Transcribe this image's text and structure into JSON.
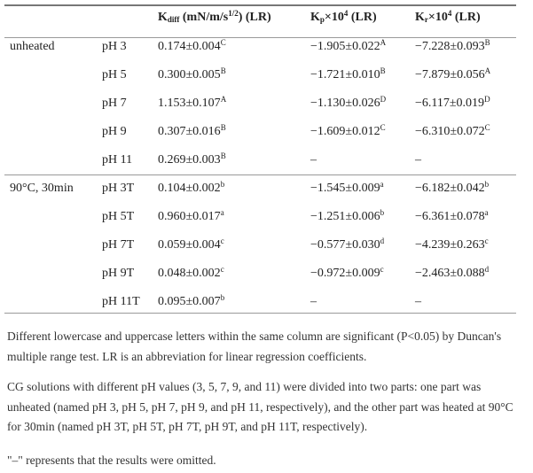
{
  "table": {
    "headers": [
      {
        "base": "K",
        "sub": "diff",
        "rest": " (mN/m/s",
        "sup": "1/2",
        "tail": ") (LR)"
      },
      {
        "base": "K",
        "sub": "p",
        "rest": "×10",
        "sup": "4",
        "tail": " (LR)"
      },
      {
        "base": "K",
        "sub": "r",
        "rest": "×10",
        "sup": "4",
        "tail": " (LR)"
      }
    ],
    "groups": [
      {
        "label": "unheated",
        "rows": [
          {
            "ph": "pH 3",
            "kdiff": [
              "0.174±0.004",
              "C"
            ],
            "kp": [
              "−1.905±0.022",
              "A"
            ],
            "kr": [
              "−7.228±0.093",
              "B"
            ]
          },
          {
            "ph": "pH 5",
            "kdiff": [
              "0.300±0.005",
              "B"
            ],
            "kp": [
              "−1.721±0.010",
              "B"
            ],
            "kr": [
              "−7.879±0.056",
              "A"
            ]
          },
          {
            "ph": "pH 7",
            "kdiff": [
              "1.153±0.107",
              "A"
            ],
            "kp": [
              "−1.130±0.026",
              "D"
            ],
            "kr": [
              "−6.117±0.019",
              "D"
            ]
          },
          {
            "ph": "pH 9",
            "kdiff": [
              "0.307±0.016",
              "B"
            ],
            "kp": [
              "−1.609±0.012",
              "C"
            ],
            "kr": [
              "−6.310±0.072",
              "C"
            ]
          },
          {
            "ph": "pH 11",
            "kdiff": [
              "0.269±0.003",
              "B"
            ],
            "kp": [
              "–",
              ""
            ],
            "kr": [
              "–",
              ""
            ]
          }
        ]
      },
      {
        "label": "90°C, 30min",
        "rows": [
          {
            "ph": "pH 3T",
            "kdiff": [
              "0.104±0.002",
              "b"
            ],
            "kp": [
              "−1.545±0.009",
              "a"
            ],
            "kr": [
              "−6.182±0.042",
              "b"
            ]
          },
          {
            "ph": "pH 5T",
            "kdiff": [
              "0.960±0.017",
              "a"
            ],
            "kp": [
              "−1.251±0.006",
              "b"
            ],
            "kr": [
              "−6.361±0.078",
              "a"
            ]
          },
          {
            "ph": "pH 7T",
            "kdiff": [
              "0.059±0.004",
              "c"
            ],
            "kp": [
              "−0.577±0.030",
              "d"
            ],
            "kr": [
              "−4.239±0.263",
              "c"
            ]
          },
          {
            "ph": "pH 9T",
            "kdiff": [
              "0.048±0.002",
              "c"
            ],
            "kp": [
              "−0.972±0.009",
              "c"
            ],
            "kr": [
              "−2.463±0.088",
              "d"
            ]
          },
          {
            "ph": "pH 11T",
            "kdiff": [
              "0.095±0.007",
              "b"
            ],
            "kp": [
              "–",
              ""
            ],
            "kr": [
              "–",
              ""
            ]
          }
        ]
      }
    ]
  },
  "notes": [
    "Different lowercase and uppercase letters within the same column are significant (P<0.05) by Duncan's multiple range test. LR is an abbreviation for linear regression coefficients.",
    "CG solutions with different pH values (3, 5, 7, 9, and 11) were divided into two parts: one part was unheated (named pH 3, pH 5, pH 7, pH 9, and pH 11, respectively), and the other part was heated at 90°C for 30min (named pH 3T, pH 5T, pH 7T, pH 9T, and pH 11T, respectively).",
    "\"–\" represents that the results were omitted."
  ]
}
